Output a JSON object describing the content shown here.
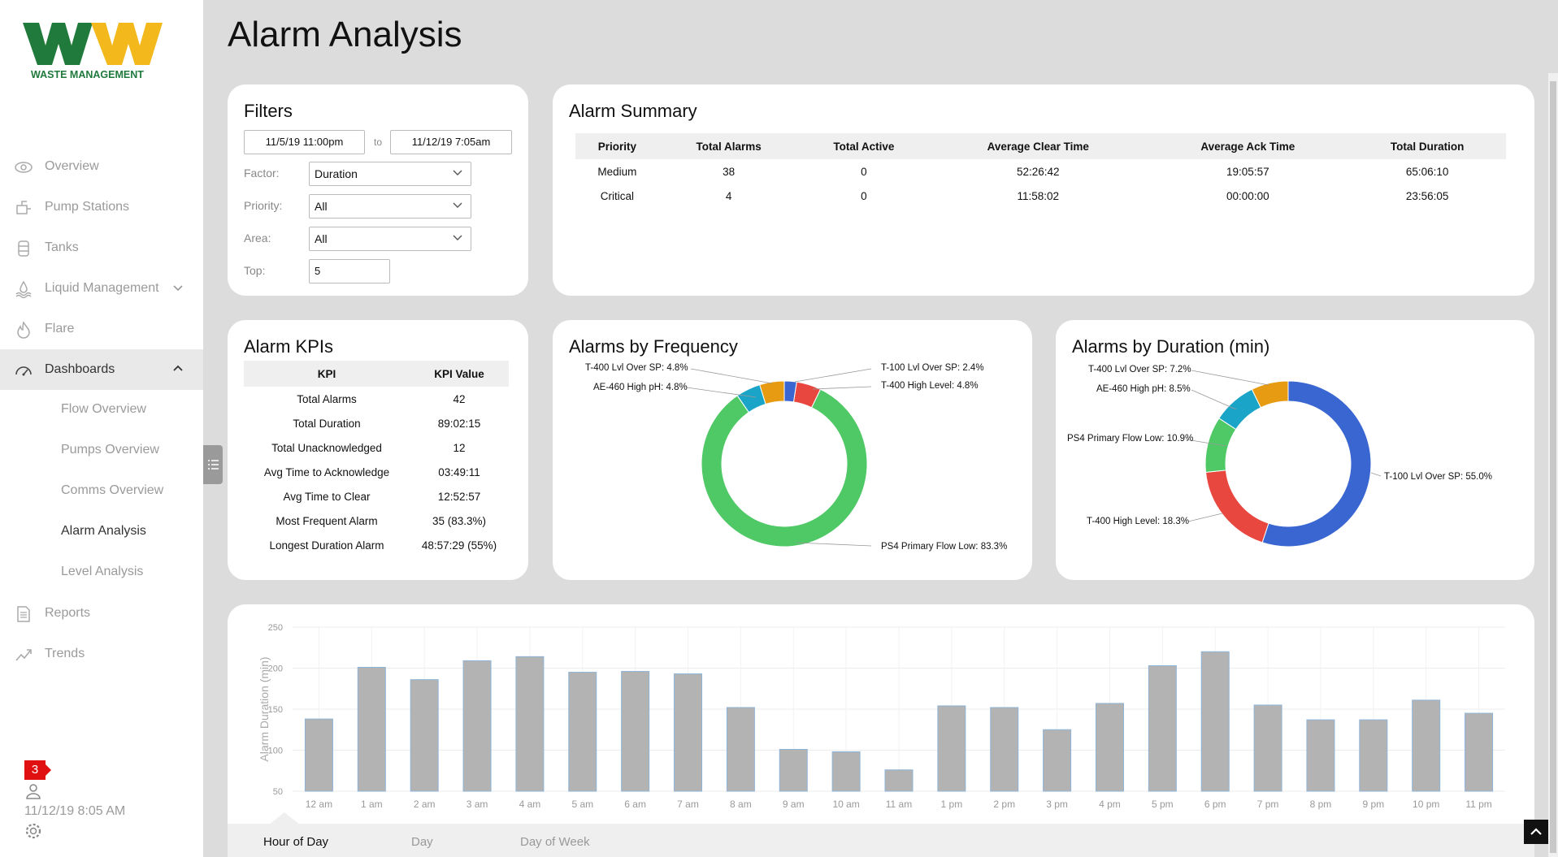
{
  "brand": {
    "logo_text": "WM",
    "logo_sub": "WASTE MANAGEMENT",
    "green": "#1f7a3c",
    "yellow": "#f2b81c"
  },
  "sidebar": {
    "items": [
      {
        "label": "Overview",
        "icon": "eye-icon"
      },
      {
        "label": "Pump Stations",
        "icon": "pump-icon"
      },
      {
        "label": "Tanks",
        "icon": "tank-icon"
      },
      {
        "label": "Liquid Management",
        "icon": "water-icon"
      },
      {
        "label": "Flare",
        "icon": "flame-icon"
      },
      {
        "label": "Dashboards",
        "icon": "gauge-icon"
      },
      {
        "label": "Reports",
        "icon": "document-icon"
      },
      {
        "label": "Trends",
        "icon": "trend-icon"
      }
    ],
    "dashboards_sub": [
      "Flow Overview",
      "Pumps Overview",
      "Comms Overview",
      "Alarm Analysis",
      "Level Analysis"
    ],
    "notification_count": "3",
    "datetime": "11/12/19 8:05 AM"
  },
  "page": {
    "title": "Alarm Analysis"
  },
  "filters": {
    "title": "Filters",
    "start": "11/5/19 11:00pm",
    "to": "to",
    "end": "11/12/19 7:05am",
    "factor_label": "Factor:",
    "factor_value": "Duration",
    "priority_label": "Priority:",
    "priority_value": "All",
    "area_label": "Area:",
    "area_value": "All",
    "top_label": "Top:",
    "top_value": "5"
  },
  "summary": {
    "title": "Alarm Summary",
    "headers": [
      "Priority",
      "Total Alarms",
      "Total Active",
      "Average Clear Time",
      "Average Ack Time",
      "Total Duration"
    ],
    "rows": [
      [
        "Medium",
        "38",
        "0",
        "52:26:42",
        "19:05:57",
        "65:06:10"
      ],
      [
        "Critical",
        "4",
        "0",
        "11:58:02",
        "00:00:00",
        "23:56:05"
      ]
    ]
  },
  "kpis": {
    "title": "Alarm KPIs",
    "headers": [
      "KPI",
      "KPI Value"
    ],
    "rows": [
      [
        "Total Alarms",
        "42"
      ],
      [
        "Total Duration",
        "89:02:15"
      ],
      [
        "Total Unacknowledged",
        "12"
      ],
      [
        "Avg Time to Acknowledge",
        "03:49:11"
      ],
      [
        "Avg Time to Clear",
        "12:52:57"
      ],
      [
        "Most Frequent Alarm",
        "35 (83.3%)"
      ],
      [
        "Longest Duration Alarm",
        "48:57:29 (55%)"
      ]
    ]
  },
  "freq": {
    "title": "Alarms by Frequency",
    "labels": {
      "t400sp": "T-400 Lvl Over SP: 4.8%",
      "ae460": "AE-460 High pH: 4.8%",
      "t100sp": "T-100 Lvl Over SP: 2.4%",
      "t400hl": "T-400 High Level: 4.8%",
      "ps4": "PS4 Primary Flow Low: 83.3%"
    }
  },
  "dur": {
    "title": "Alarms by Duration (min)",
    "labels": {
      "t400sp": "T-400 Lvl Over SP: 7.2%",
      "ae460": "AE-460 High pH: 8.5%",
      "ps4": "PS4 Primary Flow Low: 10.9%",
      "t400hl": "T-400 High Level: 18.3%",
      "t100sp": "T-100 Lvl Over SP: 55.0%"
    }
  },
  "chart_data": [
    {
      "type": "pie",
      "title": "Alarms by Frequency",
      "donut": true,
      "slices": [
        {
          "name": "T-100 Lvl Over SP",
          "value": 2.4,
          "color": "#3a66d1"
        },
        {
          "name": "T-400 High Level",
          "value": 4.8,
          "color": "#e8473f"
        },
        {
          "name": "PS4 Primary Flow Low",
          "value": 83.3,
          "color": "#4fc866"
        },
        {
          "name": "AE-460 High pH",
          "value": 4.8,
          "color": "#1aa4c8"
        },
        {
          "name": "T-400 Lvl Over SP",
          "value": 4.8,
          "color": "#e69b12"
        }
      ]
    },
    {
      "type": "pie",
      "title": "Alarms by Duration (min)",
      "donut": true,
      "slices": [
        {
          "name": "T-100 Lvl Over SP",
          "value": 55.0,
          "color": "#3a66d1"
        },
        {
          "name": "T-400 High Level",
          "value": 18.3,
          "color": "#e8473f"
        },
        {
          "name": "PS4 Primary Flow Low",
          "value": 10.9,
          "color": "#4fc866"
        },
        {
          "name": "AE-460 High pH",
          "value": 8.5,
          "color": "#1aa4c8"
        },
        {
          "name": "T-400 Lvl Over SP",
          "value": 7.2,
          "color": "#e69b12"
        }
      ]
    },
    {
      "type": "bar",
      "categories": [
        "12 am",
        "1 am",
        "2 am",
        "3 am",
        "4 am",
        "5 am",
        "6 am",
        "7 am",
        "8 am",
        "9 am",
        "10 am",
        "11 am",
        "1 pm",
        "2 pm",
        "3 pm",
        "4 pm",
        "5 pm",
        "6 pm",
        "7 pm",
        "8 pm",
        "9 pm",
        "10 pm",
        "11 pm"
      ],
      "values": [
        138,
        201,
        186,
        209,
        214,
        195,
        196,
        193,
        152,
        101,
        98,
        76,
        154,
        152,
        125,
        157,
        203,
        220,
        155,
        137,
        137,
        161,
        145
      ],
      "xlabel": "",
      "ylabel": "Alarm Duration (min)",
      "ylim": [
        50,
        250
      ],
      "yticks": [
        50,
        100,
        150,
        200,
        250
      ],
      "bar_color": "#b3b3b3",
      "bar_edge": "#8fb4d8",
      "grid": true
    }
  ],
  "bar_tabs": [
    "Hour of Day",
    "Day",
    "Day of Week"
  ]
}
